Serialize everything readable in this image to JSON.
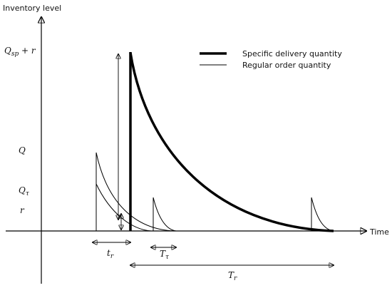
{
  "axes": {
    "y_label": "Inventory level",
    "x_label": "Time"
  },
  "levels": [
    {
      "symbol": "Q",
      "subscript": "sp",
      "suffix": " + r"
    },
    {
      "symbol": "Q"
    },
    {
      "symbol": "Q",
      "subscript": "τ"
    },
    {
      "symbol": "r"
    }
  ],
  "legend": [
    "Specific delivery quantity",
    "Regular order quantity"
  ],
  "intervals": [
    {
      "symbol": "t",
      "subscript": "r"
    },
    {
      "symbol": "T",
      "subscript": "τ"
    },
    {
      "symbol": "T",
      "subscript": "r"
    }
  ]
}
